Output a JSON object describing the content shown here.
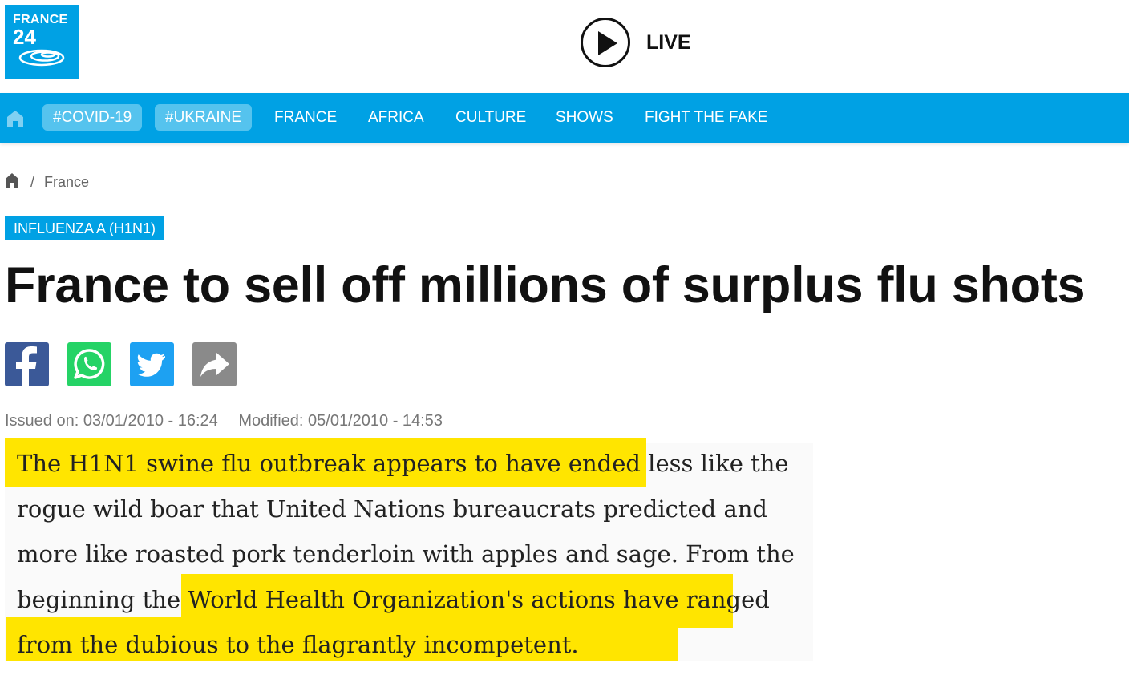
{
  "header": {
    "logo": {
      "line1": "FRANCE",
      "line2": "24"
    },
    "live_label": "LIVE"
  },
  "nav": {
    "home_icon": "home-icon",
    "pills": [
      "#COVID-19",
      "#UKRAINE"
    ],
    "links": [
      "FRANCE",
      "AFRICA",
      "CULTURE",
      "SHOWS",
      "FIGHT THE FAKE"
    ]
  },
  "breadcrumb": {
    "separator": "/",
    "section": "France"
  },
  "article": {
    "tag": "INFLUENZA A (H1N1)",
    "title": "France to sell off millions of surplus flu shots",
    "share_icons": [
      "facebook-icon",
      "whatsapp-icon",
      "twitter-icon",
      "share-icon"
    ],
    "issued": "Issued on: 03/01/2010 - 16:24",
    "modified": "Modified: 05/01/2010 - 14:53",
    "quote": "The H1N1 swine flu outbreak appears to have ended less like the rogue wild boar that United Nations bureaucrats predicted and more like roasted pork tenderloin with apples and sage. From the beginning the World Health Organization's actions have ranged from the dubious to the flagrantly incompetent.",
    "highlight_color": "#ffe500"
  },
  "colors": {
    "brand": "#00a1e4",
    "pill_bg": "#55c3ee",
    "facebook": "#3b5998",
    "whatsapp": "#25d366",
    "twitter": "#1da1f2",
    "share": "#8a8a8a"
  }
}
